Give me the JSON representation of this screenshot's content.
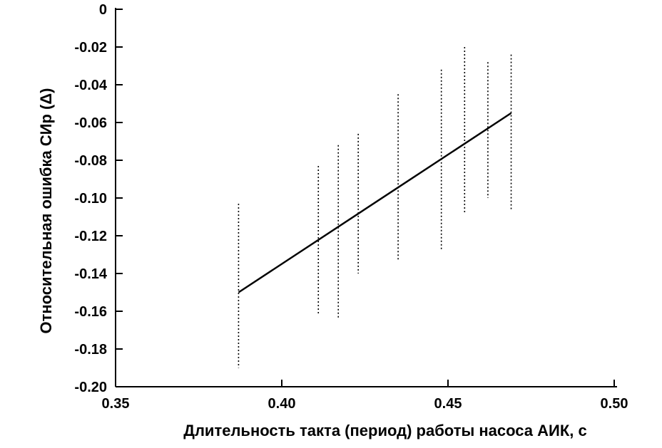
{
  "chart_data": {
    "type": "line",
    "title": "",
    "xlabel": "Длительность такта (период) работы насоса АИК, с",
    "ylabel": "Относительная ошибка СИр (Δ)",
    "xlim": [
      0.35,
      0.5
    ],
    "ylim": [
      -0.2,
      0
    ],
    "x_ticks": [
      0.35,
      0.4,
      0.45,
      0.5
    ],
    "x_tick_labels": [
      "0.35",
      "0.40",
      "0.45",
      "0.50"
    ],
    "y_ticks": [
      0,
      -0.02,
      -0.04,
      -0.06,
      -0.08,
      -0.1,
      -0.12,
      -0.14,
      -0.16,
      -0.18,
      -0.2
    ],
    "y_tick_labels": [
      "0",
      "-0.02",
      "-0.04",
      "-0.06",
      "-0.08",
      "-0.10",
      "-0.12",
      "-0.14",
      "-0.16",
      "-0.18",
      "-0.20"
    ],
    "grid": false,
    "legend": "none",
    "series": [
      {
        "type": "line",
        "x": [
          0.387,
          0.469
        ],
        "y": [
          -0.15,
          -0.055
        ]
      }
    ],
    "scatter_columns": [
      {
        "x": 0.387,
        "y_min": -0.19,
        "y_max": -0.103
      },
      {
        "x": 0.411,
        "y_min": -0.162,
        "y_max": -0.083
      },
      {
        "x": 0.417,
        "y_min": -0.164,
        "y_max": -0.072
      },
      {
        "x": 0.423,
        "y_min": -0.14,
        "y_max": -0.066
      },
      {
        "x": 0.435,
        "y_min": -0.133,
        "y_max": -0.045
      },
      {
        "x": 0.448,
        "y_min": -0.128,
        "y_max": -0.032
      },
      {
        "x": 0.455,
        "y_min": -0.108,
        "y_max": -0.02
      },
      {
        "x": 0.462,
        "y_min": -0.1,
        "y_max": -0.028
      },
      {
        "x": 0.469,
        "y_min": -0.107,
        "y_max": -0.024
      }
    ]
  }
}
